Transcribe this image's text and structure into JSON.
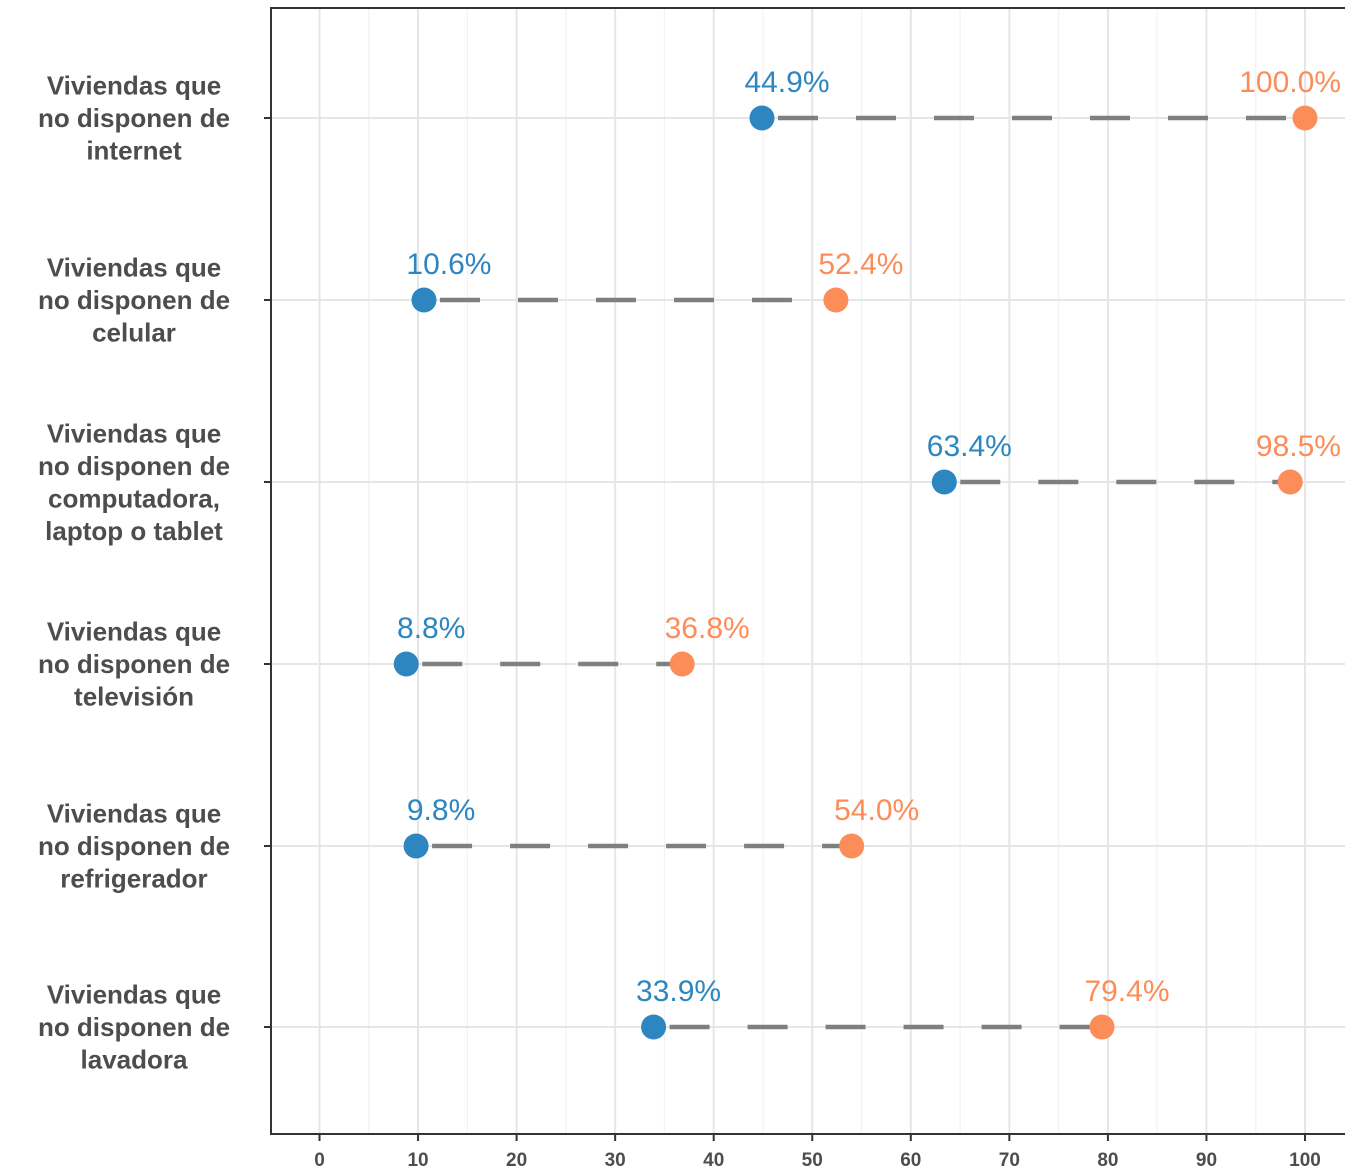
{
  "chart_data": {
    "type": "dumbbell",
    "xlim": [
      -5,
      104
    ],
    "x_ticks": [
      "0",
      "10",
      "20",
      "30",
      "40",
      "50",
      "60",
      "70",
      "80",
      "90",
      "100"
    ],
    "tick_values": [
      0,
      10,
      20,
      30,
      40,
      50,
      60,
      70,
      80,
      90,
      100
    ],
    "grid": true,
    "colors": {
      "low": "#2e86c1",
      "high": "#fc8d59",
      "connector": "#7f7f7f"
    },
    "rows": [
      {
        "label_lines": [
          "Viviendas que",
          "no disponen de",
          "internet"
        ],
        "low": 44.9,
        "high": 100.0,
        "low_label": "44.9%",
        "high_label": "100.0%"
      },
      {
        "label_lines": [
          "Viviendas que",
          "no disponen de",
          "celular"
        ],
        "low": 10.6,
        "high": 52.4,
        "low_label": "10.6%",
        "high_label": "52.4%"
      },
      {
        "label_lines": [
          "Viviendas que",
          "no disponen de",
          "computadora,",
          "laptop o tablet"
        ],
        "low": 63.4,
        "high": 98.5,
        "low_label": "63.4%",
        "high_label": "98.5%"
      },
      {
        "label_lines": [
          "Viviendas que",
          "no disponen de",
          "televisión"
        ],
        "low": 8.8,
        "high": 36.8,
        "low_label": "8.8%",
        "high_label": "36.8%"
      },
      {
        "label_lines": [
          "Viviendas que",
          "no disponen de",
          "refrigerador"
        ],
        "low": 9.8,
        "high": 54.0,
        "low_label": "9.8%",
        "high_label": "54.0%"
      },
      {
        "label_lines": [
          "Viviendas que",
          "no disponen de",
          "lavadora"
        ],
        "low": 33.9,
        "high": 79.4,
        "low_label": "33.9%",
        "high_label": "79.4%"
      }
    ]
  }
}
